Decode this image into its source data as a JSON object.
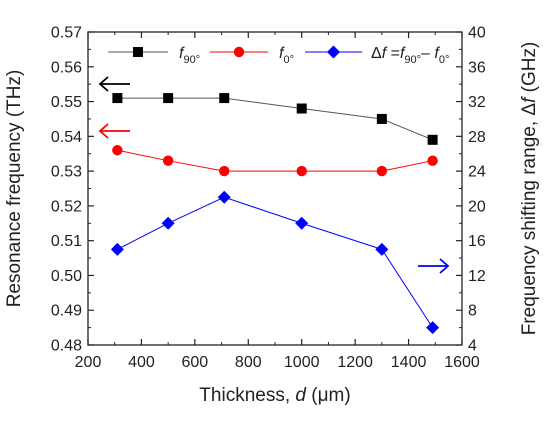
{
  "chart_data": {
    "type": "line",
    "xlabel_prefix": "Thickness, ",
    "xlabel_var": "d",
    "xlabel_unit": " (μm)",
    "ylabel_left": "Resonance frequency (THz)",
    "ylabel_right_prefix": "Frequency shifting range, Δ",
    "ylabel_right_var": "f",
    "ylabel_right_unit": " (GHz)",
    "xlim": [
      200,
      1600
    ],
    "ylim_left": [
      0.48,
      0.57
    ],
    "ylim_right": [
      4,
      40
    ],
    "x_ticks": [
      200,
      400,
      600,
      800,
      1000,
      1200,
      1400,
      1600
    ],
    "x_tick_labels": [
      "200",
      "400",
      "600",
      "800",
      "1000",
      "1200",
      "1400",
      "1600"
    ],
    "yleft_ticks": [
      0.48,
      0.49,
      0.5,
      0.51,
      0.52,
      0.53,
      0.54,
      0.55,
      0.56,
      0.57
    ],
    "yleft_tick_labels": [
      "0.48",
      "0.49",
      "0.50",
      "0.51",
      "0.52",
      "0.53",
      "0.54",
      "0.55",
      "0.56",
      "0.57"
    ],
    "yright_ticks": [
      4,
      8,
      12,
      16,
      20,
      24,
      28,
      32,
      36,
      40
    ],
    "yright_tick_labels": [
      "4",
      "8",
      "12",
      "16",
      "20",
      "24",
      "28",
      "32",
      "36",
      "40"
    ],
    "x": [
      310,
      500,
      710,
      1000,
      1300,
      1490
    ],
    "series": [
      {
        "name": "f90°",
        "legend_var": "f",
        "legend_sub": "90°",
        "axis": "left",
        "marker": "square",
        "color": "#000000",
        "values": [
          0.551,
          0.551,
          0.551,
          0.548,
          0.545,
          0.539
        ]
      },
      {
        "name": "f0°",
        "legend_var": "f",
        "legend_sub": "0°",
        "axis": "left",
        "marker": "circle",
        "color": "#ff0000",
        "values": [
          0.536,
          0.533,
          0.53,
          0.53,
          0.53,
          0.533
        ]
      },
      {
        "name": "Δf = f90° − f0°",
        "legend_text": "Δf =f90°– f0°",
        "axis": "right",
        "marker": "diamond",
        "color": "#0000ff",
        "values": [
          15,
          18,
          21,
          18,
          15,
          6
        ]
      }
    ],
    "legend_placement": "top",
    "grid": false
  }
}
